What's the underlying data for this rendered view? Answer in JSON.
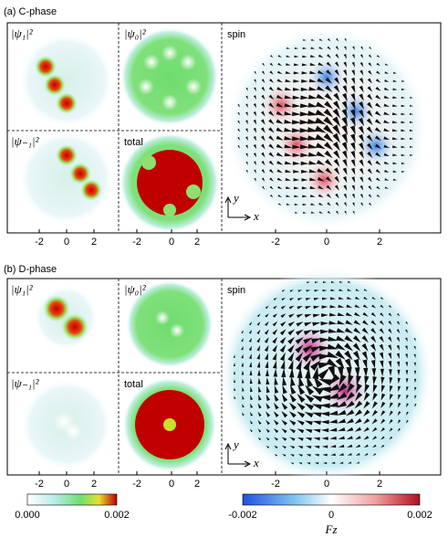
{
  "panels": [
    {
      "label": "(a) C-phase",
      "titles": [
        "|ψ₁|²",
        "|ψ₀|²",
        "|ψ₋₁|²",
        "total",
        "spin"
      ],
      "x_axis": "x",
      "y_axis": "y",
      "ticks": [
        [
          "-2",
          "0",
          "2"
        ],
        [
          "-2",
          "0",
          "2"
        ],
        [
          "-2",
          "0",
          "2"
        ]
      ]
    },
    {
      "label": "(b) D-phase",
      "titles": [
        "|ψ₁|²",
        "|ψ₀|²",
        "|ψ₋₁|²",
        "total",
        "spin"
      ],
      "x_axis": "x",
      "y_axis": "y",
      "ticks": [
        [
          "-2",
          "0",
          "2"
        ],
        [
          "-2",
          "0",
          "2"
        ],
        [
          "-2",
          "0",
          "2"
        ]
      ]
    }
  ],
  "colorbars": [
    {
      "ticks": [
        "0.000",
        "0.002"
      ]
    },
    {
      "ticks": [
        "-0.002",
        "0",
        "0.002"
      ],
      "label": "Fz"
    }
  ]
}
